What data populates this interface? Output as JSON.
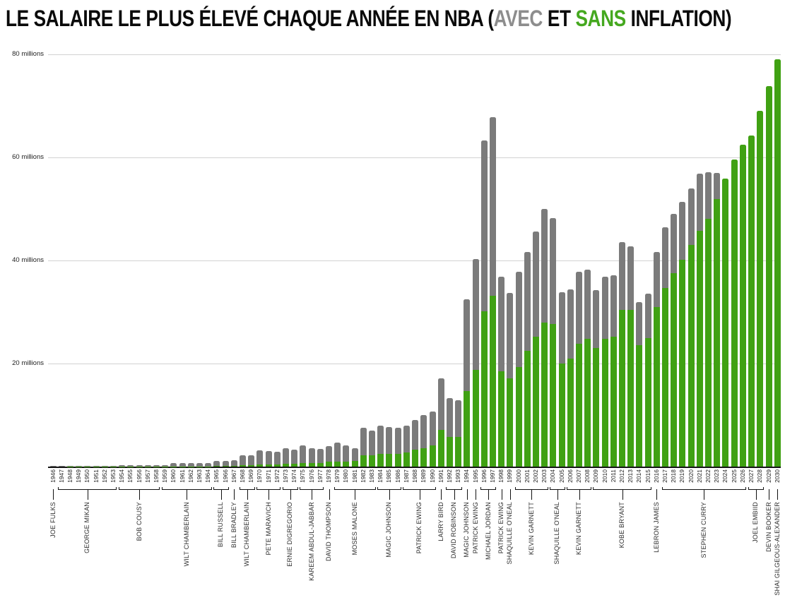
{
  "title": {
    "prefix": "LE SALAIRE LE PLUS ÉLEVÉ CHAQUE ANNÉE EN NBA (",
    "avec": "AVEC",
    "et": " ET ",
    "sans": "SANS",
    "suffix": " INFLATION)"
  },
  "y_axis": {
    "ticks": [
      {
        "value": 20,
        "label": "20 millions"
      },
      {
        "value": 40,
        "label": "40 millions"
      },
      {
        "value": 60,
        "label": "60 millions"
      },
      {
        "value": 80,
        "label": "80 millions"
      }
    ]
  },
  "colors": {
    "bar_avec_gray": "#7b7b7b",
    "bar_sans_green": "#40a113",
    "title_avec_gray": "#8d8d8d",
    "title_sans_green": "#45a81f",
    "gridline": "#d2d2d2",
    "baseline": "#161616"
  },
  "chart_data": {
    "type": "bar",
    "title": "LE SALAIRE LE PLUS ÉLEVÉ CHAQUE ANNÉE EN NBA (AVEC ET SANS INFLATION)",
    "unit": "millions",
    "ylim": [
      0,
      80
    ],
    "grid": true,
    "legend": "title-inline (AVEC = gris, SANS = vert)",
    "years": [
      1946,
      1947,
      1948,
      1949,
      1950,
      1951,
      1952,
      1953,
      1954,
      1955,
      1956,
      1957,
      1958,
      1959,
      1960,
      1961,
      1962,
      1963,
      1964,
      1965,
      1966,
      1967,
      1968,
      1969,
      1970,
      1971,
      1972,
      1973,
      1974,
      1975,
      1976,
      1977,
      1978,
      1979,
      1980,
      1981,
      1982,
      1983,
      1984,
      1985,
      1986,
      1987,
      1988,
      1989,
      1990,
      1991,
      1992,
      1993,
      1994,
      1995,
      1996,
      1997,
      1998,
      1999,
      2000,
      2001,
      2002,
      2003,
      2004,
      2005,
      2006,
      2007,
      2008,
      2009,
      2010,
      2011,
      2012,
      2013,
      2014,
      2015,
      2016,
      2017,
      2018,
      2019,
      2020,
      2021,
      2022,
      2023,
      2024,
      2025,
      2026,
      2027,
      2028,
      2029,
      2030
    ],
    "series": [
      {
        "name": "avec inflation",
        "color": "#7b7b7b",
        "values": [
          0.1,
          0.1,
          0.12,
          0.15,
          0.16,
          0.15,
          0.15,
          0.15,
          0.22,
          0.22,
          0.22,
          0.22,
          0.22,
          0.3,
          0.65,
          0.65,
          0.65,
          0.63,
          0.63,
          1.1,
          1.1,
          1.25,
          2.2,
          2.15,
          3.15,
          3.0,
          2.9,
          3.55,
          3.3,
          4.05,
          3.5,
          3.4,
          4.0,
          4.7,
          4.1,
          3.6,
          7.5,
          7.0,
          7.9,
          7.7,
          7.5,
          7.9,
          9.0,
          10.0,
          10.7,
          17.1,
          13.3,
          12.9,
          32.4,
          40.3,
          63.3,
          67.8,
          36.8,
          33.7,
          37.8,
          41.6,
          45.6,
          50.0,
          48.2,
          33.8,
          34.4,
          37.8,
          38.2,
          34.3,
          36.9,
          37.1,
          43.5,
          42.8,
          31.9,
          33.6,
          41.7,
          46.5,
          49.0,
          51.4,
          54.0,
          56.9,
          57.1,
          57.0,
          55.9,
          59.6,
          62.5,
          64.3,
          69.0,
          73.9,
          79.0
        ]
      },
      {
        "name": "sans inflation",
        "color": "#40a113",
        "values": [
          0.008,
          0.01,
          0.012,
          0.015,
          0.015,
          0.015,
          0.015,
          0.015,
          0.025,
          0.025,
          0.025,
          0.025,
          0.025,
          0.03,
          0.065,
          0.065,
          0.065,
          0.065,
          0.065,
          0.1,
          0.1,
          0.125,
          0.25,
          0.25,
          0.38,
          0.38,
          0.38,
          0.6,
          0.6,
          0.65,
          0.65,
          0.65,
          1.0,
          1.0,
          1.0,
          1.1,
          2.2,
          2.2,
          2.5,
          2.5,
          2.4,
          2.75,
          3.25,
          3.6,
          4.1,
          7.1,
          5.7,
          5.7,
          14.6,
          18.7,
          30.1,
          33.1,
          18.5,
          17.1,
          19.3,
          22.4,
          25.2,
          28.0,
          27.7,
          20.0,
          21.0,
          23.8,
          24.8,
          23.0,
          24.8,
          25.2,
          30.4,
          30.4,
          23.5,
          25.0,
          31.0,
          34.7,
          37.5,
          40.2,
          43.0,
          45.8,
          48.1,
          51.9,
          55.9,
          59.6,
          62.5,
          64.3,
          69.0,
          73.9,
          79.0
        ]
      }
    ],
    "player_groups": [
      {
        "name": "JOE FULKS",
        "from": 1946,
        "to": 1946
      },
      {
        "name": "GEORGE MIKAN",
        "from": 1947,
        "to": 1953
      },
      {
        "name": "BOB COUSY",
        "from": 1954,
        "to": 1958
      },
      {
        "name": "WILT CHAMBERLAIN",
        "from": 1959,
        "to": 1964
      },
      {
        "name": "BILL RUSSELL",
        "from": 1965,
        "to": 1966
      },
      {
        "name": "BILL BRADLEY",
        "from": 1967,
        "to": 1967
      },
      {
        "name": "WILT CHAMBERLAIN",
        "from": 1968,
        "to": 1969
      },
      {
        "name": "PETE MARAVICH",
        "from": 1970,
        "to": 1972
      },
      {
        "name": "ERNIE DIGREGORIO",
        "from": 1973,
        "to": 1974
      },
      {
        "name": "KAREEM ABDUL-JABBAR",
        "from": 1975,
        "to": 1977
      },
      {
        "name": "DAVID THOMPSON",
        "from": 1978,
        "to": 1978
      },
      {
        "name": "MOSES MALONE",
        "from": 1979,
        "to": 1983
      },
      {
        "name": "MAGIC JOHNSON",
        "from": 1984,
        "to": 1986
      },
      {
        "name": "PATRICK EWING",
        "from": 1987,
        "to": 1990
      },
      {
        "name": "LARRY BIRD",
        "from": 1991,
        "to": 1991
      },
      {
        "name": "DAVID ROBINSON",
        "from": 1992,
        "to": 1993
      },
      {
        "name": "MAGIC JOHNSON",
        "from": 1994,
        "to": 1994
      },
      {
        "name": "PATRICK EWING",
        "from": 1995,
        "to": 1995
      },
      {
        "name": "MICHAEL JORDAN",
        "from": 1996,
        "to": 1997
      },
      {
        "name": "PATRICK EWING",
        "from": 1998,
        "to": 1998
      },
      {
        "name": "SHAQUILLE O'NEAL",
        "from": 1999,
        "to": 1999
      },
      {
        "name": "KEVIN GARNETT",
        "from": 2000,
        "to": 2003
      },
      {
        "name": "SHAQUILLE O'NEAL",
        "from": 2004,
        "to": 2005
      },
      {
        "name": "KEVIN GARNETT",
        "from": 2006,
        "to": 2008
      },
      {
        "name": "KOBE BRYANT",
        "from": 2009,
        "to": 2015
      },
      {
        "name": "LEBRON JAMES",
        "from": 2016,
        "to": 2016
      },
      {
        "name": "STEPHEN CURRY",
        "from": 2017,
        "to": 2026
      },
      {
        "name": "JOEL EMBIID",
        "from": 2027,
        "to": 2028
      },
      {
        "name": "DEVIN BOOKER",
        "from": 2029,
        "to": 2029
      },
      {
        "name": "SHAI GILGEOUS-ALEXANDER",
        "from": 2030,
        "to": 2030
      }
    ]
  }
}
